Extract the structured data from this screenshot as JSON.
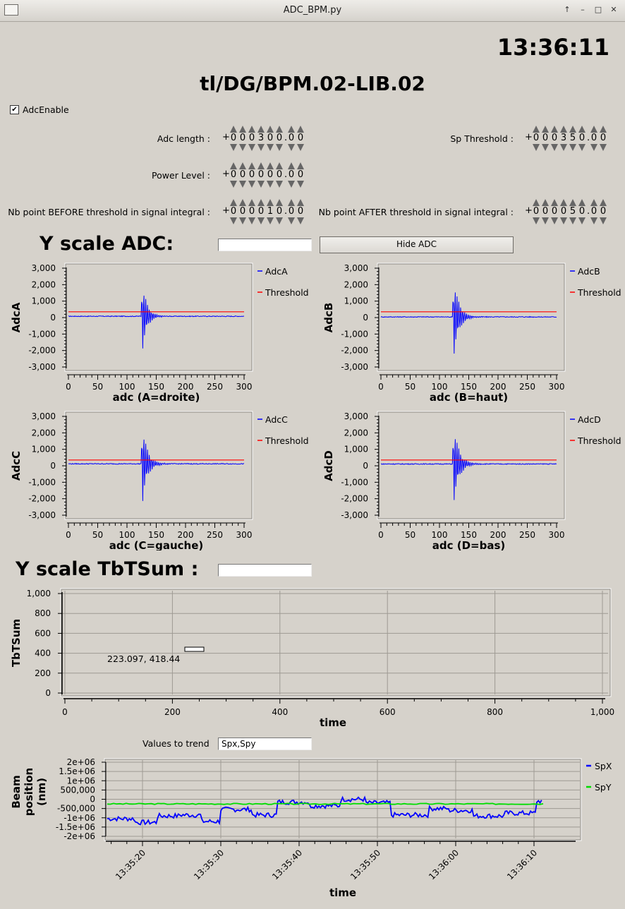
{
  "window": {
    "title": "ADC_BPM.py"
  },
  "clock": "13:36:11",
  "device": "tl/DG/BPM.02-LIB.02",
  "adc_enable": {
    "label": "AdcEnable",
    "checked": true
  },
  "params": {
    "adc_length": {
      "label": "Adc length :",
      "sign": "+",
      "digits": [
        "0",
        "0",
        "0",
        "3",
        "0",
        "0",
        ".",
        "0",
        "0"
      ]
    },
    "sp_threshold": {
      "label": "Sp Threshold :",
      "sign": "+",
      "digits": [
        "0",
        "0",
        "0",
        "3",
        "5",
        "0",
        ".",
        "0",
        "0"
      ]
    },
    "power_level": {
      "label": "Power Level :",
      "sign": "+",
      "digits": [
        "0",
        "0",
        "0",
        "0",
        "0",
        "0",
        ".",
        "0",
        "0"
      ]
    },
    "nb_before": {
      "label": "Nb point BEFORE threshold in signal integral :",
      "sign": "+",
      "digits": [
        "0",
        "0",
        "0",
        "0",
        "1",
        "0",
        ".",
        "0",
        "0"
      ]
    },
    "nb_after": {
      "label": "Nb point AFTER threshold in signal integral :",
      "sign": "+",
      "digits": [
        "0",
        "0",
        "0",
        "0",
        "5",
        "0",
        ".",
        "0",
        "0"
      ]
    }
  },
  "y_scale_adc": {
    "label": "Y scale ADC:",
    "value": ""
  },
  "hide_adc_button": "Hide ADC",
  "y_scale_tbt": {
    "label": "Y scale TbTSum :",
    "value": ""
  },
  "values_to_trend": {
    "label": "Values to trend",
    "value": "Spx,Spy"
  },
  "colors": {
    "signal": "#0000ff",
    "threshold": "#ff0000",
    "spx": "#0000ff",
    "spy": "#00dd00"
  },
  "chart_data": [
    {
      "type": "line",
      "ylabel": "AdcA",
      "xlabel": "adc  (A=droite)",
      "xlim": [
        0,
        300
      ],
      "ylim": [
        -3000,
        3000
      ],
      "xticks": [
        "0",
        "50",
        "100",
        "150",
        "200",
        "250",
        "300"
      ],
      "yticks": [
        "3,000",
        "2,000",
        "1,000",
        "0",
        "-1,000",
        "-2,000",
        "-3,000"
      ],
      "series": [
        {
          "name": "AdcA",
          "burst": {
            "start": 125,
            "amplitude": 2600,
            "decay": 0.13,
            "period": 3.2,
            "baseline": 80
          }
        },
        {
          "name": "Threshold",
          "constant": 350
        }
      ]
    },
    {
      "type": "line",
      "ylabel": "AdcB",
      "xlabel": "adc  (B=haut)",
      "xlim": [
        0,
        300
      ],
      "ylim": [
        -3000,
        3000
      ],
      "xticks": [
        "0",
        "50",
        "100",
        "150",
        "200",
        "250",
        "300"
      ],
      "yticks": [
        "3,000",
        "2,000",
        "1,000",
        "0",
        "-1,000",
        "-2,000",
        "-3,000"
      ],
      "series": [
        {
          "name": "AdcB",
          "burst": {
            "start": 123,
            "amplitude": 2800,
            "decay": 0.11,
            "period": 3.2,
            "baseline": 40
          }
        },
        {
          "name": "Threshold",
          "constant": 350
        }
      ]
    },
    {
      "type": "line",
      "ylabel": "AdcC",
      "xlabel": "adc  (C=gauche)",
      "xlim": [
        0,
        300
      ],
      "ylim": [
        -3000,
        3000
      ],
      "xticks": [
        "0",
        "50",
        "100",
        "150",
        "200",
        "250",
        "300"
      ],
      "yticks": [
        "3,000",
        "2,000",
        "1,000",
        "0",
        "-1,000",
        "-2,000",
        "-3,000"
      ],
      "series": [
        {
          "name": "AdcC",
          "burst": {
            "start": 125,
            "amplitude": 2900,
            "decay": 0.12,
            "period": 3.2,
            "baseline": 120
          }
        },
        {
          "name": "Threshold",
          "constant": 350
        }
      ]
    },
    {
      "type": "line",
      "ylabel": "AdcD",
      "xlabel": "adc  (D=bas)",
      "xlim": [
        0,
        300
      ],
      "ylim": [
        -3000,
        3000
      ],
      "xticks": [
        "0",
        "50",
        "100",
        "150",
        "200",
        "250",
        "300"
      ],
      "yticks": [
        "3,000",
        "2,000",
        "1,000",
        "0",
        "-1,000",
        "-2,000",
        "-3,000"
      ],
      "series": [
        {
          "name": "AdcD",
          "burst": {
            "start": 123,
            "amplitude": 2800,
            "decay": 0.11,
            "period": 3.2,
            "baseline": 110
          }
        },
        {
          "name": "Threshold",
          "constant": 350
        }
      ]
    },
    {
      "type": "line",
      "ylabel": "TbTSum",
      "xlabel": "time",
      "xlim": [
        0,
        1000
      ],
      "ylim": [
        0,
        1000
      ],
      "xticks": [
        "0",
        "200",
        "400",
        "600",
        "800",
        "1,000"
      ],
      "yticks": [
        "1,000",
        "800",
        "600",
        "400",
        "200",
        "0"
      ],
      "grid": true,
      "annotation": "223.097, 418.44",
      "series": []
    },
    {
      "type": "line",
      "ylabel": "Beam position (nm)",
      "xlabel": "time",
      "ylim": [
        -2000000,
        2000000
      ],
      "yticks": [
        "2e+06",
        "1.5e+06",
        "1e+06",
        "500,000",
        "0",
        "-500,000",
        "-1e+06",
        "-1.5e+06",
        "-2e+06"
      ],
      "xticks": [
        "13:35:20",
        "13:35:30",
        "13:35:40",
        "13:35:50",
        "13:36:00",
        "13:36:10"
      ],
      "grid": true,
      "series": [
        {
          "name": "SpX",
          "segments": [
            {
              "from": 0,
              "to": 4.5,
              "value": -1050000
            },
            {
              "from": 4.5,
              "to": 8,
              "value": -1250000
            },
            {
              "from": 8,
              "to": 11.5,
              "value": -900000
            },
            {
              "from": 11.5,
              "to": 15,
              "value": -850000
            },
            {
              "from": 15,
              "to": 18,
              "value": -1200000
            },
            {
              "from": 18,
              "to": 23,
              "value": -550000
            },
            {
              "from": 23,
              "to": 27,
              "value": -850000
            },
            {
              "from": 27,
              "to": 32,
              "value": -150000
            },
            {
              "from": 32,
              "to": 37,
              "value": -350000
            },
            {
              "from": 37,
              "to": 41,
              "value": 0
            },
            {
              "from": 41,
              "to": 45,
              "value": -200000
            },
            {
              "from": 45,
              "to": 51,
              "value": -850000
            },
            {
              "from": 51,
              "to": 54,
              "value": -500000
            },
            {
              "from": 54,
              "to": 58,
              "value": -600000
            },
            {
              "from": 58,
              "to": 63,
              "value": -900000
            },
            {
              "from": 63,
              "to": 68,
              "value": -750000
            },
            {
              "from": 68,
              "to": 69,
              "value": -100000
            }
          ]
        },
        {
          "name": "SpY",
          "constant": -250000,
          "start": 0,
          "end": 69
        }
      ]
    }
  ]
}
